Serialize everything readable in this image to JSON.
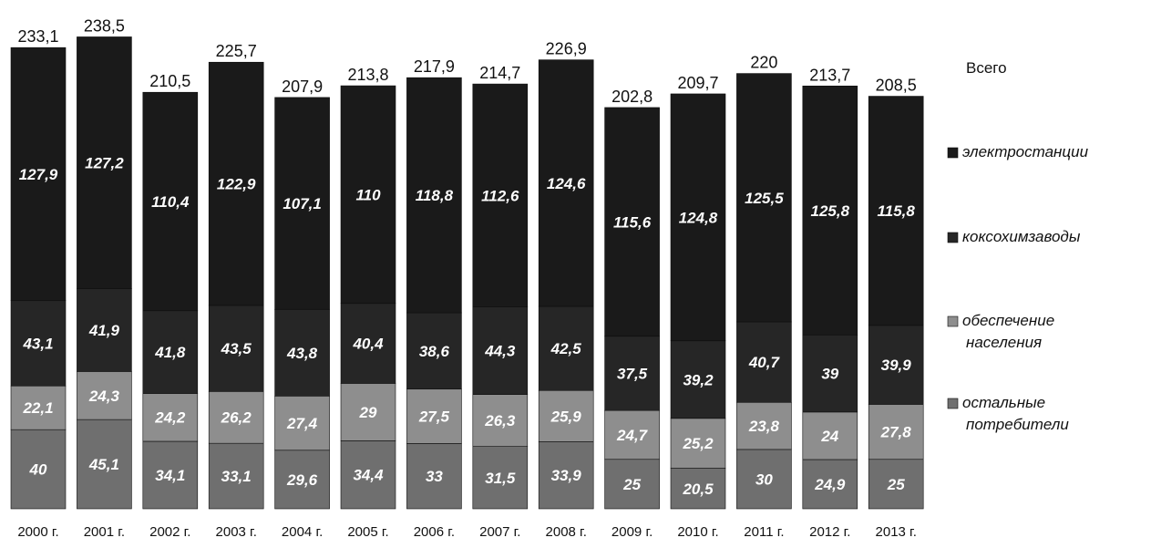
{
  "chart_data": {
    "type": "bar",
    "stacked": true,
    "title": "",
    "xlabel": "",
    "ylabel": "",
    "categories": [
      "2000 г.",
      "2001 г.",
      "2002 г.",
      "2003 г.",
      "2004 г.",
      "2005 г.",
      "2006 г.",
      "2007 г.",
      "2008 г.",
      "2009 г.",
      "2010 г.",
      "2011 г.",
      "2012 г.",
      "2013 г."
    ],
    "totals": [
      233.1,
      238.5,
      210.5,
      225.7,
      207.9,
      213.8,
      217.9,
      214.7,
      226.9,
      202.8,
      209.7,
      220,
      213.7,
      208.5
    ],
    "totals_display": [
      "233,1",
      "238,5",
      "210,5",
      "225,7",
      "207,9",
      "213,8",
      "217,9",
      "214,7",
      "226,9",
      "202,8",
      "209,7",
      "220",
      "213,7",
      "208,5"
    ],
    "series": [
      {
        "name": "остальные потребители",
        "name_lines": [
          "остальные",
          "потребители"
        ],
        "color": "#6f6f6f",
        "values": [
          40,
          45.1,
          34.1,
          33.1,
          29.6,
          34.4,
          33,
          31.5,
          33.9,
          25,
          20.5,
          30,
          24.9,
          25
        ],
        "display": [
          "40",
          "45,1",
          "34,1",
          "33,1",
          "29,6",
          "34,4",
          "33",
          "31,5",
          "33,9",
          "25",
          "20,5",
          "30",
          "24,9",
          "25"
        ]
      },
      {
        "name": "обеспечение населения",
        "name_lines": [
          "обеспечение",
          "населения"
        ],
        "color": "#8e8e8e",
        "values": [
          22.1,
          24.3,
          24.2,
          26.2,
          27.4,
          29,
          27.5,
          26.3,
          25.9,
          24.7,
          25.2,
          23.8,
          24,
          27.8
        ],
        "display": [
          "22,1",
          "24,3",
          "24,2",
          "26,2",
          "27,4",
          "29",
          "27,5",
          "26,3",
          "25,9",
          "24,7",
          "25,2",
          "23,8",
          "24",
          "27,8"
        ]
      },
      {
        "name": "коксохимзаводы",
        "name_lines": [
          "коксохимзаводы"
        ],
        "color": "#262626",
        "values": [
          43.1,
          41.9,
          41.8,
          43.5,
          43.8,
          40.4,
          38.6,
          44.3,
          42.5,
          37.5,
          39.2,
          40.7,
          39,
          39.9
        ],
        "display": [
          "43,1",
          "41,9",
          "41,8",
          "43,5",
          "43,8",
          "40,4",
          "38,6",
          "44,3",
          "42,5",
          "37,5",
          "39,2",
          "40,7",
          "39",
          "39,9"
        ]
      },
      {
        "name": "электростанции",
        "name_lines": [
          "электростанции"
        ],
        "color": "#1a1a1a",
        "values": [
          127.9,
          127.2,
          110.4,
          122.9,
          107.1,
          110,
          118.8,
          112.6,
          124.6,
          115.6,
          124.8,
          125.5,
          125.8,
          115.8
        ],
        "display": [
          "127,9",
          "127,2",
          "110,4",
          "122,9",
          "107,1",
          "110",
          "118,8",
          "112,6",
          "124,6",
          "115,6",
          "124,8",
          "125,5",
          "125,8",
          "115,8"
        ]
      }
    ],
    "legend_title": "Всего",
    "legend_position": "right",
    "legend_order": [
      "электростанции",
      "коксохимзаводы",
      "обеспечение населения",
      "остальные потребители"
    ],
    "grid": false,
    "ylim": [
      0,
      240
    ]
  }
}
